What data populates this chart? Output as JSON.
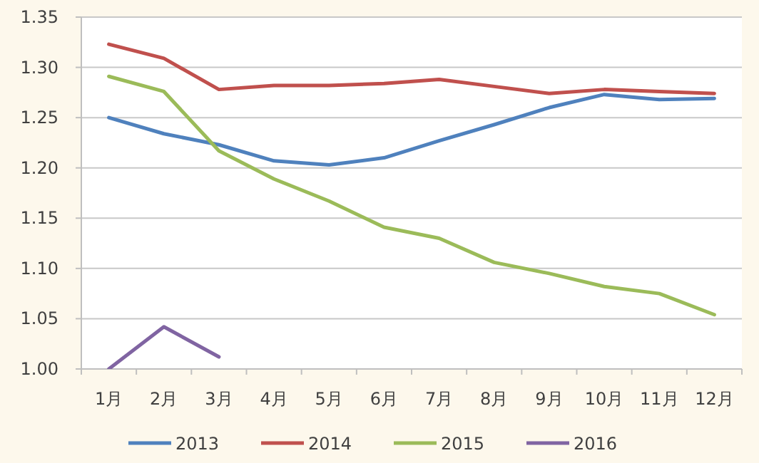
{
  "chart_data": {
    "type": "line",
    "categories": [
      "1月",
      "2月",
      "3月",
      "4月",
      "5月",
      "6月",
      "7月",
      "8月",
      "9月",
      "10月",
      "11月",
      "12月"
    ],
    "series": [
      {
        "name": "2013",
        "color": "#4f81bd",
        "values": [
          1.25,
          1.234,
          1.223,
          1.207,
          1.203,
          1.21,
          1.227,
          1.243,
          1.26,
          1.273,
          1.268,
          1.269
        ]
      },
      {
        "name": "2014",
        "color": "#c0504d",
        "values": [
          1.323,
          1.309,
          1.278,
          1.282,
          1.282,
          1.284,
          1.288,
          1.281,
          1.274,
          1.278,
          1.276,
          1.274
        ]
      },
      {
        "name": "2015",
        "color": "#9bbb59",
        "values": [
          1.291,
          1.276,
          1.217,
          1.189,
          1.167,
          1.141,
          1.13,
          1.106,
          1.095,
          1.082,
          1.075,
          1.054
        ]
      },
      {
        "name": "2016",
        "color": "#8064a2",
        "values": [
          1.0,
          1.042,
          1.012,
          null,
          null,
          null,
          null,
          null,
          null,
          null,
          null,
          null
        ]
      }
    ],
    "ylim": [
      1.0,
      1.35
    ],
    "yticks": [
      {
        "value": 1.0,
        "label": "1.00"
      },
      {
        "value": 1.05,
        "label": "1.05"
      },
      {
        "value": 1.1,
        "label": "1.10"
      },
      {
        "value": 1.15,
        "label": "1.15"
      },
      {
        "value": 1.2,
        "label": "1.20"
      },
      {
        "value": 1.25,
        "label": "1.25"
      },
      {
        "value": 1.3,
        "label": "1.30"
      },
      {
        "value": 1.35,
        "label": "1.35"
      }
    ],
    "grid": "y",
    "legend": "bottom",
    "marker": "none",
    "line_style": "solid"
  }
}
